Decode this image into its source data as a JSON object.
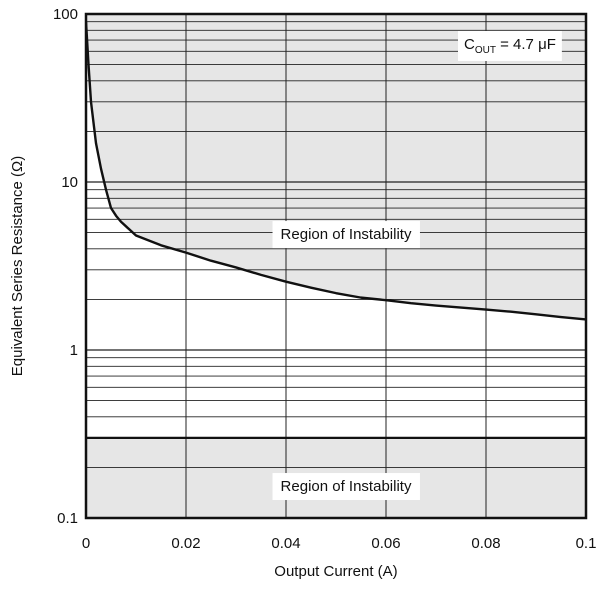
{
  "chart_data": {
    "type": "line",
    "xlabel": "Output Current (A)",
    "ylabel": "Equivalent Series Resistance (Ω)",
    "xlim": [
      0,
      0.1
    ],
    "ylim": [
      0.1,
      100
    ],
    "yscale": "log",
    "x_ticks": [
      "0",
      "0.02",
      "0.04",
      "0.06",
      "0.08",
      "0.1"
    ],
    "x_tick_values": [
      0,
      0.02,
      0.04,
      0.06,
      0.08,
      0.1
    ],
    "y_ticks": [
      "0.1",
      "1",
      "10",
      "100"
    ],
    "y_tick_values": [
      0.1,
      1,
      10,
      100
    ],
    "grid": true,
    "annotation": {
      "main": "C",
      "sub": "OUT",
      "rest": " = 4.7 μF"
    },
    "regions": [
      {
        "label": "Region of Instability",
        "bound": "above-curve",
        "label_x": 0.052,
        "label_y": 4.9
      },
      {
        "label": "Region of Instability",
        "bound": "below-line",
        "label_x": 0.052,
        "label_y": 0.155
      }
    ],
    "lower_boundary_esr": 0.3,
    "upper_boundary": {
      "x": [
        0,
        0.0005,
        0.001,
        0.002,
        0.003,
        0.004,
        0.005,
        0.006,
        0.007,
        0.01,
        0.015,
        0.02,
        0.025,
        0.03,
        0.035,
        0.04,
        0.045,
        0.05,
        0.055,
        0.06,
        0.065,
        0.07,
        0.075,
        0.08,
        0.085,
        0.09,
        0.095,
        0.1
      ],
      "y": [
        90,
        50,
        30,
        17,
        12,
        9,
        7,
        6.3,
        5.8,
        4.8,
        4.2,
        3.8,
        3.4,
        3.1,
        2.8,
        2.55,
        2.35,
        2.18,
        2.05,
        1.98,
        1.9,
        1.84,
        1.79,
        1.74,
        1.69,
        1.63,
        1.57,
        1.52
      ]
    },
    "colors": {
      "shade": "#e6e6e6",
      "line": "#111111",
      "grid": "#222222"
    }
  }
}
